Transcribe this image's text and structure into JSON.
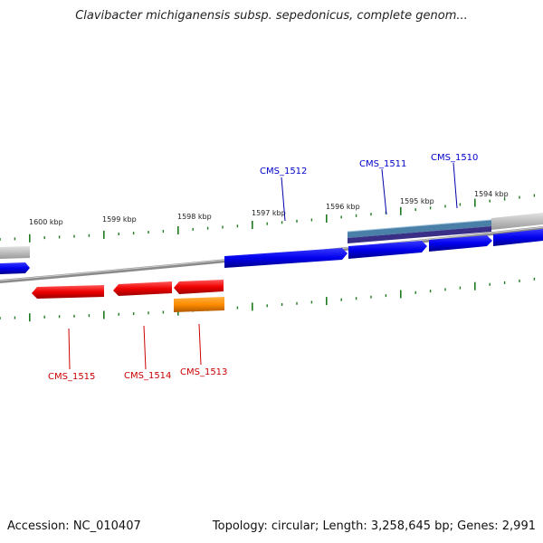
{
  "title": "Clavibacter michiganensis subsp. sepedonicus, complete genom...",
  "footer": {
    "accession": "Accession: NC_010407",
    "summary": "Topology: circular; Length: 3,258,645 bp; Genes: 2,991"
  },
  "kbp_ticks": [
    "1600 kbp",
    "1599 kbp",
    "1598 kbp",
    "1597 kbp",
    "1596 kbp",
    "1595 kbp",
    "1594 kbp"
  ],
  "genes": {
    "forward": [
      {
        "name": "CMS_1512",
        "color": "#0000cc"
      },
      {
        "name": "CMS_1511",
        "color": "#0000cc"
      },
      {
        "name": "CMS_1510",
        "color": "#0000cc"
      }
    ],
    "reverse": [
      {
        "name": "CMS_1515",
        "color": "#cc0000"
      },
      {
        "name": "CMS_1514",
        "color": "#cc0000"
      },
      {
        "name": "CMS_1513",
        "color": "#cc0000"
      }
    ]
  },
  "colors": {
    "forward_gene": "#0000ff",
    "reverse_gene": "#ff0000",
    "orange_feature": "#ff8c00",
    "teal_feature": "#4a7fa8",
    "purple_feature": "#3a2f86",
    "tick_mark": "#1e7a1e",
    "backbone": "#8a8a8a"
  }
}
